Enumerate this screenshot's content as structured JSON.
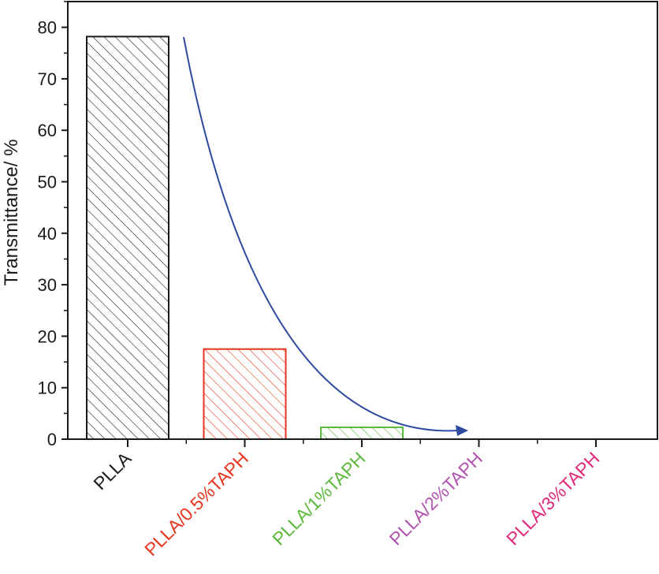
{
  "chart_data": {
    "type": "bar",
    "title": "",
    "xlabel": "",
    "ylabel": "Transmittance/ %",
    "ylim": [
      0,
      85
    ],
    "yticks": [
      0,
      10,
      20,
      30,
      40,
      50,
      60,
      70,
      80
    ],
    "categories": [
      "PLLA",
      "PLLA/0.5%TAPH",
      "PLLA/1%TAPH",
      "PLLA/2%TAPH",
      "PLLA/3%TAPH"
    ],
    "values": [
      78.2,
      17.5,
      2.3,
      0,
      0
    ],
    "colors": [
      "#1a1a1a",
      "#e8341c",
      "#5cb83a",
      "#b052b0",
      "#e0287a"
    ],
    "fill_pattern": "diagonal-hatch",
    "grid": false,
    "legend": "none",
    "annotation": "curved arrow indicating decreasing trend",
    "arrow_color": "#2e4a9e"
  }
}
